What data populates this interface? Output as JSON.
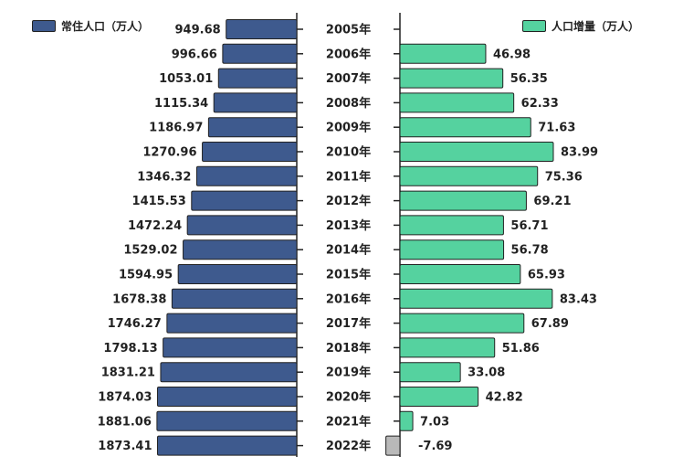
{
  "colors": {
    "population": "#3e5a8e",
    "growth": "#55d29f",
    "negative": "#b9b9b9",
    "axis": "#222222"
  },
  "legend": {
    "population": "常住人口（万人）",
    "growth": "人口增量（万人）"
  },
  "chart_data": {
    "type": "bar",
    "orientation": "horizontal-butterfly",
    "categories": [
      "2005年",
      "2006年",
      "2007年",
      "2008年",
      "2009年",
      "2010年",
      "2011年",
      "2012年",
      "2013年",
      "2014年",
      "2015年",
      "2016年",
      "2017年",
      "2018年",
      "2019年",
      "2020年",
      "2021年",
      "2022年"
    ],
    "series": [
      {
        "name": "常住人口（万人）",
        "side": "left",
        "values": [
          949.68,
          996.66,
          1053.01,
          1115.34,
          1186.97,
          1270.96,
          1346.32,
          1415.53,
          1472.24,
          1529.02,
          1594.95,
          1678.38,
          1746.27,
          1798.13,
          1831.21,
          1874.03,
          1881.06,
          1873.41
        ]
      },
      {
        "name": "人口增量（万人）",
        "side": "right",
        "values": [
          null,
          46.98,
          56.35,
          62.33,
          71.63,
          83.99,
          75.36,
          69.21,
          56.71,
          56.78,
          65.93,
          83.43,
          67.89,
          51.86,
          33.08,
          42.82,
          7.03,
          -7.69
        ]
      }
    ],
    "labels": {
      "population": [
        "949.68",
        "996.66",
        "1053.01",
        "1115.34",
        "1186.97",
        "1270.96",
        "1346.32",
        "1415.53",
        "1472.24",
        "1529.02",
        "1594.95",
        "1678.38",
        "1746.27",
        "1798.13",
        "1831.21",
        "1874.03",
        "1881.06",
        "1873.41"
      ],
      "growth": [
        "",
        "46.98",
        "56.35",
        "62.33",
        "71.63",
        "83.99",
        "75.36",
        "69.21",
        "56.71",
        "56.78",
        "65.93",
        "83.43",
        "67.89",
        "51.86",
        "33.08",
        "42.82",
        "7.03",
        "-7.69"
      ]
    },
    "legend_position": "top",
    "grid": false
  }
}
